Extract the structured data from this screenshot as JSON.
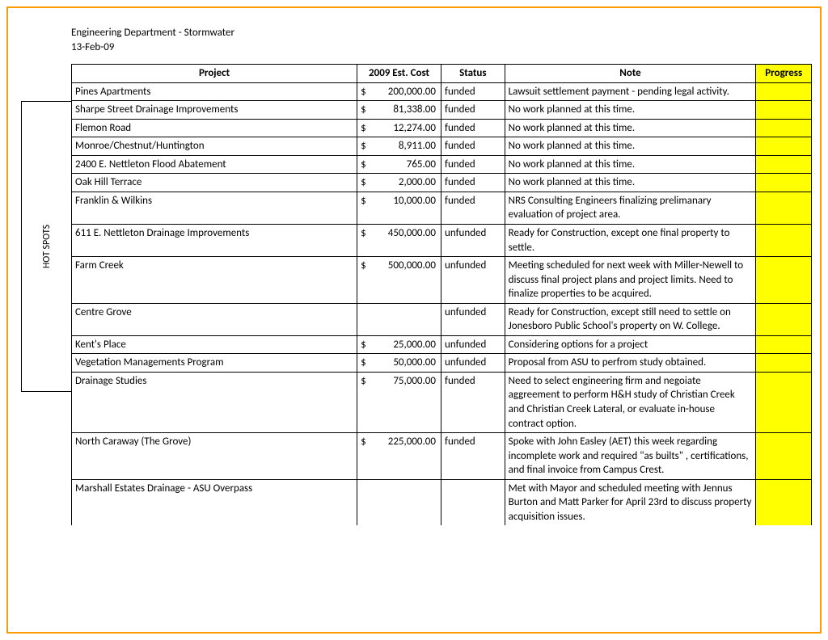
{
  "visual": {
    "frame_border_color": "#ff9900",
    "table_border_color": "#000000",
    "progress_highlight_color": "#ffff00",
    "background_color": "#ffffff",
    "text_color": "#000000",
    "font_family": "Calibri, Arial, sans-serif",
    "font_size_pt": 10
  },
  "header": {
    "title": "Engineering Department - Stormwater",
    "date": "13-Feb-09"
  },
  "side_label": "HOT SPOTS",
  "columns": {
    "project": "Project",
    "cost": "2009 Est. Cost",
    "status": "Status",
    "note": "Note",
    "progress": "Progress"
  },
  "rows": [
    {
      "project": "Pines Apartments",
      "dollar": "$",
      "amount": "200,000.00",
      "status": "funded",
      "note": "Lawsuit settlement payment - pending legal activity."
    },
    {
      "project": "Sharpe Street Drainage Improvements",
      "dollar": "$",
      "amount": "81,338.00",
      "status": "funded",
      "note": "No work planned at this time."
    },
    {
      "project": "Flemon Road",
      "dollar": "$",
      "amount": "12,274.00",
      "status": "funded",
      "note": "No work planned at this time."
    },
    {
      "project": "Monroe/Chestnut/Huntington",
      "dollar": "$",
      "amount": "8,911.00",
      "status": "funded",
      "note": "No work planned at this time."
    },
    {
      "project": "2400 E. Nettleton Flood Abatement",
      "dollar": "$",
      "amount": "765.00",
      "status": "funded",
      "note": "No work planned at this time."
    },
    {
      "project": "Oak Hill Terrace",
      "dollar": "$",
      "amount": "2,000.00",
      "status": "funded",
      "note": "No work planned at this time."
    },
    {
      "project": "Franklin & Wilkins",
      "dollar": "$",
      "amount": "10,000.00",
      "status": "funded",
      "note": "NRS Consulting Engineers finalizing prelimanary evaluation of project area."
    },
    {
      "project": "611 E. Nettleton Drainage Improvements",
      "dollar": "$",
      "amount": "450,000.00",
      "status": "unfunded",
      "note": "Ready for Construction, except one final property to settle."
    },
    {
      "project": "Farm Creek",
      "dollar": "$",
      "amount": "500,000.00",
      "status": "unfunded",
      "note": "Meeting scheduled for next week with Miller-Newell to discuss final project plans and project limits.  Need to finalize properties to be acquired."
    },
    {
      "project": "Centre Grove",
      "dollar": "",
      "amount": "",
      "status": "unfunded",
      "note": "Ready for Construction, except still need to settle on Jonesboro Public School's property on W. College."
    },
    {
      "project": "Kent's Place",
      "dollar": "$",
      "amount": "25,000.00",
      "status": "unfunded",
      "note": "Considering options for a project"
    },
    {
      "project": "Vegetation Managements Program",
      "dollar": "$",
      "amount": "50,000.00",
      "status": "unfunded",
      "note": "Proposal from ASU to perfrom study obtained."
    },
    {
      "project": "Drainage Studies",
      "dollar": "$",
      "amount": "75,000.00",
      "status": "funded",
      "note": "Need to select engineering firm and negoiate aggreement to perform H&H study of Christian Creek and Christian Creek Lateral, or evaluate in-house contract option."
    },
    {
      "project": "North Caraway (The Grove)",
      "dollar": "$",
      "amount": "225,000.00",
      "status": "funded",
      "note": "Spoke with John Easley (AET) this week regarding incomplete work and required \"as builts\" , certifications, and final invoice from Campus Crest."
    },
    {
      "project": "Marshall Estates Drainage - ASU Overpass",
      "dollar": "",
      "amount": "",
      "status": "",
      "note": "Met with Mayor and scheduled meeting with Jennus Burton and Matt Parker for April 23rd to discuss property acquisition issues."
    }
  ]
}
